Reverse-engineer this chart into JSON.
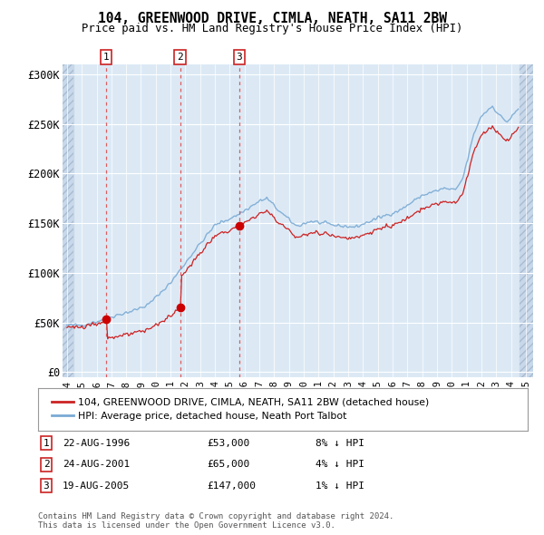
{
  "title": "104, GREENWOOD DRIVE, CIMLA, NEATH, SA11 2BW",
  "subtitle": "Price paid vs. HM Land Registry's House Price Index (HPI)",
  "ylabel_ticks": [
    "£0",
    "£50K",
    "£100K",
    "£150K",
    "£200K",
    "£250K",
    "£300K"
  ],
  "ytick_values": [
    0,
    50000,
    100000,
    150000,
    200000,
    250000,
    300000
  ],
  "ylim": [
    -5000,
    310000
  ],
  "xlim_start": 1993.7,
  "xlim_end": 2025.5,
  "background_color": "#dce9f5",
  "hatch_color": "#c8d8ea",
  "grid_color": "#ffffff",
  "hpi_line_color": "#7aaad4",
  "price_line_color": "#cc2222",
  "dot_color": "#cc0000",
  "dashed_line_color": "#dd4444",
  "hatch_end": 1994.42,
  "hatch_start2": 2024.58,
  "sale_dates": [
    1996.644,
    2001.644,
    2005.644
  ],
  "sale_prices": [
    53000,
    65000,
    147000
  ],
  "sale_labels": [
    "1",
    "2",
    "3"
  ],
  "legend_label_red": "104, GREENWOOD DRIVE, CIMLA, NEATH, SA11 2BW (detached house)",
  "legend_label_blue": "HPI: Average price, detached house, Neath Port Talbot",
  "table_rows": [
    {
      "num": "1",
      "date": "22-AUG-1996",
      "price": "£53,000",
      "hpi": "8% ↓ HPI"
    },
    {
      "num": "2",
      "date": "24-AUG-2001",
      "price": "£65,000",
      "hpi": "4% ↓ HPI"
    },
    {
      "num": "3",
      "date": "19-AUG-2005",
      "price": "£147,000",
      "hpi": "1% ↓ HPI"
    }
  ],
  "footnote": "Contains HM Land Registry data © Crown copyright and database right 2024.\nThis data is licensed under the Open Government Licence v3.0."
}
